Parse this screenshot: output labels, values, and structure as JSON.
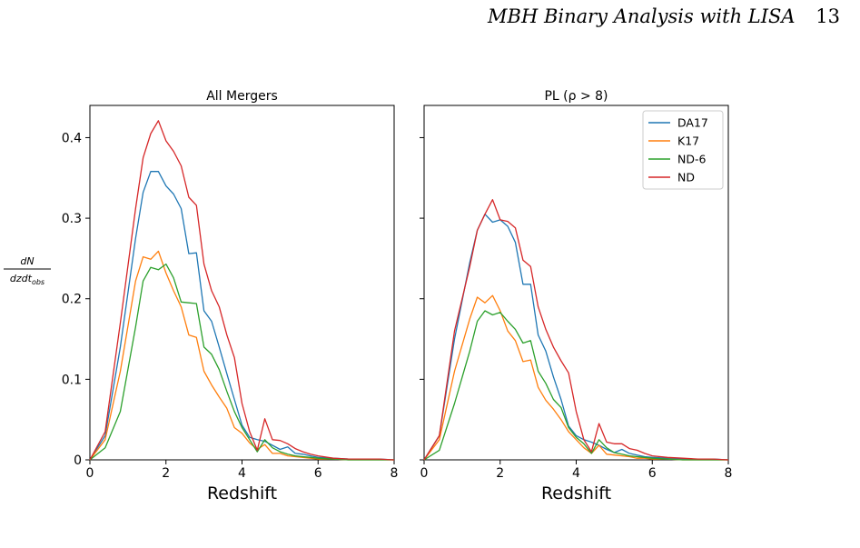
{
  "header": {
    "title": "MBH Binary Analysis with LISA",
    "page_number": "13"
  },
  "ylabel": {
    "numerator": "dN",
    "denominator": "dzdt",
    "denominator_sub": "obs"
  },
  "colors": {
    "DA17": "#1f77b4",
    "K17": "#ff7f0e",
    "ND-6": "#2ca02c",
    "ND": "#d62728"
  },
  "chart_data": [
    {
      "type": "line",
      "title": "All Mergers",
      "xlabel": "Redshift",
      "xlim": [
        0,
        8
      ],
      "ylim": [
        0,
        0.44
      ],
      "xticks": [
        "0",
        "2",
        "4",
        "6",
        "8"
      ],
      "yticks": [
        "0",
        "0.1",
        "0.2",
        "0.3",
        "0.4"
      ],
      "x": [
        0,
        0.4,
        0.8,
        1.2,
        1.4,
        1.6,
        1.8,
        2.0,
        2.2,
        2.4,
        2.6,
        2.8,
        3.0,
        3.2,
        3.4,
        3.6,
        3.8,
        4.0,
        4.2,
        4.4,
        4.6,
        4.8,
        5.0,
        5.2,
        5.4,
        5.6,
        5.8,
        6.0,
        6.4,
        6.8,
        7.2,
        7.6,
        8.0
      ],
      "series": [
        {
          "name": "DA17",
          "values": [
            0,
            0.03,
            0.14,
            0.275,
            0.332,
            0.358,
            0.358,
            0.34,
            0.33,
            0.312,
            0.256,
            0.257,
            0.185,
            0.172,
            0.14,
            0.107,
            0.075,
            0.043,
            0.028,
            0.025,
            0.023,
            0.018,
            0.013,
            0.016,
            0.008,
            0.007,
            0.005,
            0.003,
            0.002,
            0.001,
            0.001,
            0.001,
            0.0
          ]
        },
        {
          "name": "K17",
          "values": [
            0,
            0.025,
            0.11,
            0.222,
            0.252,
            0.249,
            0.259,
            0.232,
            0.21,
            0.19,
            0.155,
            0.152,
            0.11,
            0.093,
            0.078,
            0.064,
            0.04,
            0.033,
            0.021,
            0.013,
            0.019,
            0.008,
            0.008,
            0.005,
            0.004,
            0.003,
            0.002,
            0.001,
            0.001,
            0.0,
            0.0,
            0.0,
            0.0
          ]
        },
        {
          "name": "ND-6",
          "values": [
            0,
            0.015,
            0.06,
            0.165,
            0.222,
            0.239,
            0.236,
            0.243,
            0.226,
            0.196,
            0.195,
            0.194,
            0.14,
            0.131,
            0.112,
            0.085,
            0.06,
            0.04,
            0.025,
            0.01,
            0.025,
            0.015,
            0.01,
            0.007,
            0.005,
            0.004,
            0.003,
            0.002,
            0.001,
            0.0,
            0.0,
            0.0,
            0.0
          ]
        },
        {
          "name": "ND",
          "values": [
            0,
            0.035,
            0.17,
            0.312,
            0.375,
            0.405,
            0.421,
            0.396,
            0.383,
            0.365,
            0.326,
            0.316,
            0.243,
            0.21,
            0.19,
            0.155,
            0.127,
            0.07,
            0.035,
            0.012,
            0.051,
            0.025,
            0.024,
            0.02,
            0.014,
            0.01,
            0.007,
            0.005,
            0.002,
            0.001,
            0.001,
            0.001,
            0.0
          ]
        }
      ]
    },
    {
      "type": "line",
      "title": "PL (ρ > 8)",
      "xlabel": "Redshift",
      "xlim": [
        0,
        8
      ],
      "ylim": [
        0,
        0.44
      ],
      "xticks": [
        "0",
        "2",
        "4",
        "6",
        "8"
      ],
      "yticks": [],
      "legend": "top-right",
      "x": [
        0,
        0.4,
        0.8,
        1.2,
        1.4,
        1.6,
        1.8,
        2.0,
        2.2,
        2.4,
        2.6,
        2.8,
        3.0,
        3.2,
        3.4,
        3.6,
        3.8,
        4.0,
        4.2,
        4.4,
        4.6,
        4.8,
        5.0,
        5.2,
        5.4,
        5.6,
        5.8,
        6.0,
        6.4,
        6.8,
        7.2,
        7.6,
        8.0
      ],
      "series": [
        {
          "name": "DA17",
          "values": [
            0,
            0.03,
            0.15,
            0.245,
            0.285,
            0.305,
            0.295,
            0.298,
            0.29,
            0.27,
            0.218,
            0.218,
            0.155,
            0.135,
            0.103,
            0.075,
            0.042,
            0.03,
            0.025,
            0.022,
            0.018,
            0.013,
            0.009,
            0.013,
            0.008,
            0.006,
            0.004,
            0.003,
            0.002,
            0.001,
            0.001,
            0.001,
            0.0
          ]
        },
        {
          "name": "K17",
          "values": [
            0,
            0.025,
            0.11,
            0.175,
            0.202,
            0.195,
            0.204,
            0.185,
            0.16,
            0.148,
            0.122,
            0.124,
            0.09,
            0.074,
            0.063,
            0.05,
            0.035,
            0.025,
            0.015,
            0.008,
            0.018,
            0.007,
            0.006,
            0.005,
            0.004,
            0.002,
            0.002,
            0.001,
            0.001,
            0.0,
            0.0,
            0.0,
            0.0
          ]
        },
        {
          "name": "ND-6",
          "values": [
            0,
            0.012,
            0.07,
            0.135,
            0.172,
            0.185,
            0.18,
            0.183,
            0.172,
            0.162,
            0.145,
            0.148,
            0.11,
            0.095,
            0.075,
            0.065,
            0.04,
            0.028,
            0.02,
            0.008,
            0.025,
            0.015,
            0.009,
            0.007,
            0.005,
            0.004,
            0.003,
            0.002,
            0.001,
            0.0,
            0.0,
            0.0,
            0.0
          ]
        },
        {
          "name": "ND",
          "values": [
            0,
            0.03,
            0.16,
            0.24,
            0.285,
            0.305,
            0.323,
            0.298,
            0.296,
            0.288,
            0.248,
            0.24,
            0.19,
            0.162,
            0.14,
            0.123,
            0.108,
            0.06,
            0.025,
            0.01,
            0.045,
            0.022,
            0.02,
            0.02,
            0.014,
            0.012,
            0.008,
            0.005,
            0.003,
            0.002,
            0.001,
            0.001,
            0.0
          ]
        }
      ]
    }
  ]
}
